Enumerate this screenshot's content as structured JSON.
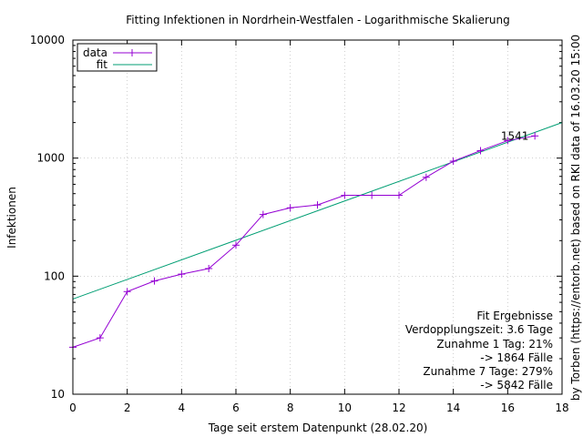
{
  "chart_data": {
    "type": "line",
    "title": "Fitting Infektionen in Nordrhein-Westfalen - Logarithmische Skalierung",
    "xlabel": "Tage seit erstem Datenpunkt (28.02.20)",
    "ylabel": "Infektionen",
    "right_label": "by Torben (https://entorb.net) based on RKI data of 16.03.20 15:00",
    "xlim": [
      0,
      18
    ],
    "ylim": [
      10,
      10000
    ],
    "yscale": "log",
    "grid": true,
    "legend_position": "top-left",
    "x_ticks": [
      0,
      2,
      4,
      6,
      8,
      10,
      12,
      14,
      16,
      18
    ],
    "x_tick_labels": [
      "0",
      "2",
      "4",
      "6",
      "8",
      "10",
      "12",
      "14",
      "16",
      "18"
    ],
    "y_ticks": [
      10,
      100,
      1000,
      10000
    ],
    "y_tick_labels": [
      "10",
      "100",
      "1000",
      "10000"
    ],
    "series": [
      {
        "name": "data",
        "color": "#9400d3",
        "marker": "plus",
        "x": [
          0,
          1,
          2,
          3,
          4,
          5,
          6,
          7,
          8,
          9,
          10,
          11,
          12,
          13,
          14,
          15,
          16,
          17
        ],
        "y": [
          25,
          30,
          74,
          91,
          104,
          116,
          183,
          333,
          379,
          401,
          484,
          484,
          484,
          688,
          942,
          1157,
          1407,
          1541
        ]
      },
      {
        "name": "fit",
        "color": "#009e73",
        "marker": "none",
        "x": [
          0,
          18
        ],
        "y": [
          64,
          2000
        ]
      }
    ],
    "annotations": [
      {
        "text": "1541",
        "x": 17,
        "y": 1541
      }
    ],
    "fit_results": [
      "Fit Ergebnisse",
      "Verdopplungszeit: 3.6 Tage",
      "Zunahme 1 Tag: 21%",
      "-> 1864 Fälle",
      "Zunahme 7 Tage: 279%",
      "-> 5842 Fälle"
    ]
  }
}
